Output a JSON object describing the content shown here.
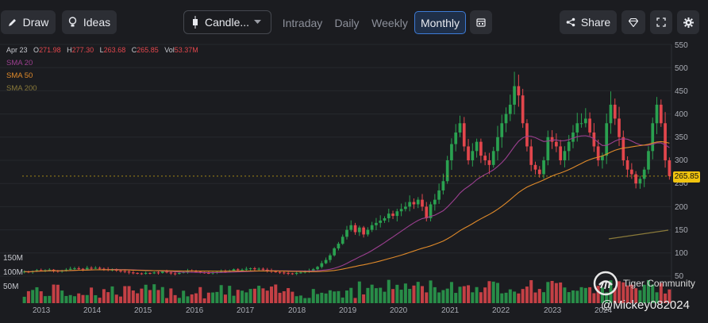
{
  "toolbar": {
    "draw_label": "Draw",
    "ideas_label": "Ideas",
    "chart_type_label": "Candle...",
    "timeframes": [
      "Intraday",
      "Daily",
      "Weekly",
      "Monthly"
    ],
    "active_timeframe": "Monthly",
    "share_label": "Share"
  },
  "ohlc": {
    "date": "Apr 23",
    "o_label": "O",
    "open": "271.98",
    "h_label": "H",
    "high": "277.30",
    "l_label": "L",
    "low": "263.68",
    "c_label": "C",
    "close": "265.85",
    "vol_label": "Vol",
    "volume": "53.37M"
  },
  "indicators": [
    {
      "name": "SMA 20",
      "color": "#9b3f8f"
    },
    {
      "name": "SMA 50",
      "color": "#e08a2a"
    },
    {
      "name": "SMA 200",
      "color": "#8a7a3a"
    }
  ],
  "colors": {
    "up": "#2aa150",
    "down": "#e2464c",
    "price_tag": "#f1c40f"
  },
  "price_tag": "265.85",
  "watermark": {
    "name": "Tiger Community",
    "handle": "@Mickey082024"
  },
  "chart_data": {
    "type": "candlestick",
    "y_ticks": [
      50,
      100,
      150,
      200,
      250,
      300,
      350,
      400,
      450,
      500,
      550
    ],
    "ylim": [
      0,
      555
    ],
    "x_ticks": [
      "2013",
      "2014",
      "2015",
      "2016",
      "2017",
      "2018",
      "2019",
      "2020",
      "2021",
      "2022",
      "2023",
      "2024"
    ],
    "volume_ticks": [
      "150M",
      "100M",
      "50M"
    ],
    "start_month": "2012-09",
    "closes": [
      60,
      59,
      61,
      63,
      62,
      63,
      64,
      62,
      60,
      62,
      64,
      66,
      67,
      66,
      65,
      68,
      67,
      68,
      66,
      65,
      63,
      64,
      62,
      61,
      60,
      58,
      57,
      56,
      55,
      57,
      56,
      58,
      57,
      60,
      58,
      56,
      55,
      57,
      59,
      62,
      61,
      60,
      58,
      57,
      56,
      58,
      59,
      61,
      60,
      62,
      65,
      63,
      64,
      66,
      67,
      65,
      66,
      64,
      62,
      60,
      59,
      58,
      57,
      56,
      55,
      57,
      58,
      60,
      62,
      65,
      70,
      78,
      85,
      95,
      110,
      120,
      135,
      150,
      160,
      145,
      155,
      140,
      150,
      160,
      165,
      170,
      175,
      185,
      180,
      190,
      195,
      200,
      210,
      205,
      215,
      200,
      175,
      205,
      215,
      235,
      255,
      300,
      335,
      360,
      380,
      330,
      300,
      320,
      340,
      310,
      300,
      290,
      320,
      350,
      380,
      400,
      420,
      460,
      440,
      380,
      330,
      290,
      280,
      270,
      300,
      350,
      340,
      330,
      300,
      320,
      340,
      360,
      380,
      380,
      390,
      360,
      330,
      300,
      310,
      380,
      420,
      390,
      350,
      300,
      280,
      270,
      250,
      260,
      280,
      320,
      380,
      420,
      380,
      300,
      266
    ]
  }
}
